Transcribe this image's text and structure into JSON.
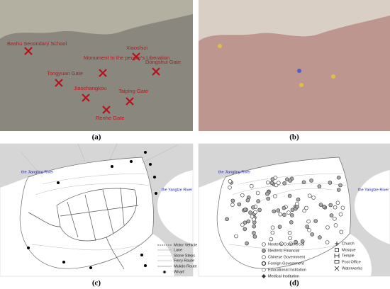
{
  "panels": [
    {
      "caption": "(a)",
      "labels": [
        "Bashu Secondary School",
        "Monument to the people's Liberation",
        "Xiaoshizi",
        "Dongshui Gate",
        "Tongyuan Gate",
        "Jiaochangkou",
        "Taiping Gate",
        "Renhe Gate"
      ]
    },
    {
      "caption": "(b)"
    },
    {
      "caption": "(c)",
      "rivers": [
        "the Jiangling River",
        "the Yangtze River"
      ],
      "legend": [
        "Motor Vehicle Road",
        "Lane",
        "Stone Steps",
        "Ferry Route",
        "Mukdo Route",
        "Wharf"
      ]
    },
    {
      "caption": "(d)",
      "rivers": [
        "the Jiangling River",
        "the Yangtze River"
      ],
      "legend": [
        "Neoteric Commercial",
        "Neoteric Financial",
        "Chinese Government",
        "Foreign Government",
        "Educational Institution",
        "Medical Institution",
        "Church",
        "Mosque",
        "Temple",
        "Post Office",
        "Waterworks"
      ]
    }
  ]
}
